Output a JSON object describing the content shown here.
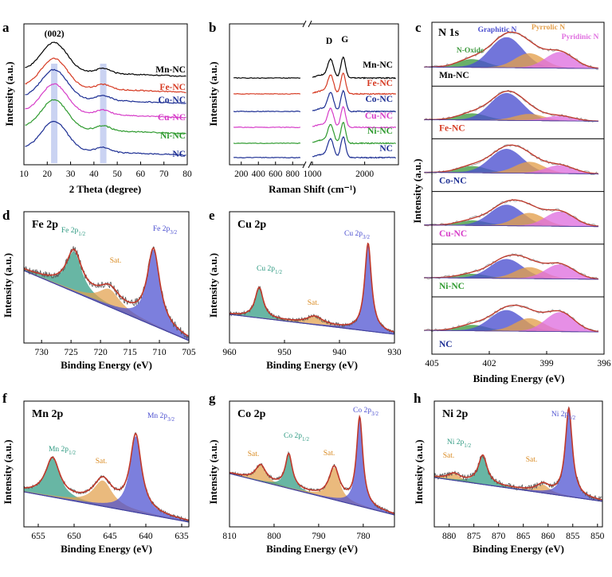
{
  "figure": {
    "panel_letters": [
      "a",
      "b",
      "c",
      "d",
      "e",
      "f",
      "g",
      "h"
    ]
  },
  "chart_data": [
    {
      "panel": "a",
      "type": "line",
      "xlabel": "2 Theta (degree)",
      "ylabel": "Intensity (a.u.)",
      "xlim": [
        10,
        80
      ],
      "xticks": [
        "10",
        "20",
        "30",
        "40",
        "50",
        "60",
        "70",
        "80"
      ],
      "peak_label": "(002)",
      "highlight_positions": [
        23,
        44
      ],
      "series": [
        {
          "name": "Mn-NC",
          "color": "#000000"
        },
        {
          "name": "Fe-NC",
          "color": "#d63a22"
        },
        {
          "name": "Co-NC",
          "color": "#1c2e93"
        },
        {
          "name": "Cu-NC",
          "color": "#d63cc8"
        },
        {
          "name": "Ni-NC",
          "color": "#2e9a2e"
        },
        {
          "name": "NC",
          "color": "#1c2e93"
        }
      ]
    },
    {
      "panel": "b",
      "type": "line",
      "xlabel": "Raman Shift (cm⁻¹)",
      "ylabel": "Intensity (a.u.)",
      "xticks": [
        "200",
        "400",
        "600",
        "800",
        "1000",
        "2000"
      ],
      "band_labels": [
        "D",
        "G"
      ],
      "band_positions": [
        1350,
        1590
      ],
      "series": [
        {
          "name": "Mn-NC",
          "color": "#000000"
        },
        {
          "name": "Fe-NC",
          "color": "#d63a22"
        },
        {
          "name": "Co-NC",
          "color": "#1c2e93"
        },
        {
          "name": "Cu-NC",
          "color": "#d63cc8"
        },
        {
          "name": "Ni-NC",
          "color": "#2e9a2e"
        },
        {
          "name": "NC",
          "color": "#1c2e93"
        }
      ]
    },
    {
      "panel": "c",
      "type": "line",
      "title": "N 1s",
      "xlabel": "Binding Energy (eV)",
      "ylabel": "Intensity (a.u.)",
      "xlim": [
        405,
        396
      ],
      "xticks": [
        "405",
        "402",
        "399",
        "396"
      ],
      "components": [
        {
          "name": "Graphitic N",
          "center": 401.1,
          "color": "#4b4fd0"
        },
        {
          "name": "Pyrrolic N",
          "center": 399.9,
          "color": "#e3a04c"
        },
        {
          "name": "Pyridinic N",
          "center": 398.3,
          "color": "#e070e0"
        },
        {
          "name": "N-Oxide",
          "center": 402.9,
          "color": "#3f9a3f"
        }
      ],
      "samples": [
        "Mn-NC",
        "Fe-NC",
        "Co-NC",
        "Cu-NC",
        "Ni-NC",
        "NC"
      ]
    },
    {
      "panel": "d",
      "type": "line",
      "title": "Fe 2p",
      "xlabel": "Binding Energy (eV)",
      "ylabel": "Intensity (a.u.)",
      "xlim": [
        733,
        705
      ],
      "xticks": [
        "730",
        "725",
        "720",
        "715",
        "710",
        "705"
      ],
      "peaks": [
        {
          "label": "Fe 2p",
          "sub": "1/2",
          "center": 724.5,
          "color": "#2f9a82"
        },
        {
          "label": "Sat.",
          "sub": "",
          "center": 718.5,
          "color": "#e3a04c"
        },
        {
          "label": "Fe 2p",
          "sub": "3/2",
          "center": 711.0,
          "color": "#4b4fd0"
        }
      ]
    },
    {
      "panel": "e",
      "type": "line",
      "title": "Cu 2p",
      "xlabel": "Binding Energy (eV)",
      "ylabel": "Intensity (a.u.)",
      "xlim": [
        960,
        930
      ],
      "xticks": [
        "960",
        "950",
        "940",
        "930"
      ],
      "peaks": [
        {
          "label": "Cu 2p",
          "sub": "1/2",
          "center": 954.6,
          "color": "#2f9a82"
        },
        {
          "label": "Sat.",
          "sub": "",
          "center": 944.5,
          "color": "#e3a04c"
        },
        {
          "label": "Cu 2p",
          "sub": "3/2",
          "center": 934.8,
          "color": "#4b4fd0"
        }
      ]
    },
    {
      "panel": "f",
      "type": "line",
      "title": "Mn 2p",
      "xlabel": "Binding Energy (eV)",
      "ylabel": "Intensity (a.u.)",
      "xlim": [
        657,
        634
      ],
      "xticks": [
        "655",
        "650",
        "645",
        "640",
        "635"
      ],
      "peaks": [
        {
          "label": "Mn 2p",
          "sub": "1/2",
          "center": 653.0,
          "color": "#2f9a82"
        },
        {
          "label": "Sat.",
          "sub": "",
          "center": 646.0,
          "color": "#e3a04c"
        },
        {
          "label": "Mn 2p",
          "sub": "3/2",
          "center": 641.4,
          "color": "#4b4fd0"
        }
      ]
    },
    {
      "panel": "g",
      "type": "line",
      "title": "Co 2p",
      "xlabel": "Binding Energy (eV)",
      "ylabel": "Intensity (a.u.)",
      "xlim": [
        810,
        773
      ],
      "xticks": [
        "810",
        "800",
        "790",
        "780"
      ],
      "peaks": [
        {
          "label": "Sat.",
          "sub": "",
          "center": 803.0,
          "color": "#e3a04c"
        },
        {
          "label": "Co 2p",
          "sub": "1/2",
          "center": 796.7,
          "color": "#2f9a82"
        },
        {
          "label": "Sat.",
          "sub": "",
          "center": 786.5,
          "color": "#e3a04c"
        },
        {
          "label": "Co 2p",
          "sub": "3/2",
          "center": 780.8,
          "color": "#4b4fd0"
        }
      ]
    },
    {
      "panel": "h",
      "type": "line",
      "title": "Ni 2p",
      "xlabel": "Binding Energy (eV)",
      "ylabel": "Intensity (a.u.)",
      "xlim": [
        883,
        849
      ],
      "xticks": [
        "880",
        "875",
        "870",
        "865",
        "860",
        "855",
        "850"
      ],
      "peaks": [
        {
          "label": "Sat.",
          "sub": "",
          "center": 879.0,
          "color": "#e3a04c"
        },
        {
          "label": "Ni 2p",
          "sub": "1/2",
          "center": 873.2,
          "color": "#2f9a82"
        },
        {
          "label": "Sat.",
          "sub": "",
          "center": 861.0,
          "color": "#e3a04c"
        },
        {
          "label": "Ni 2p",
          "sub": "3/2",
          "center": 855.8,
          "color": "#4b4fd0"
        }
      ]
    }
  ]
}
